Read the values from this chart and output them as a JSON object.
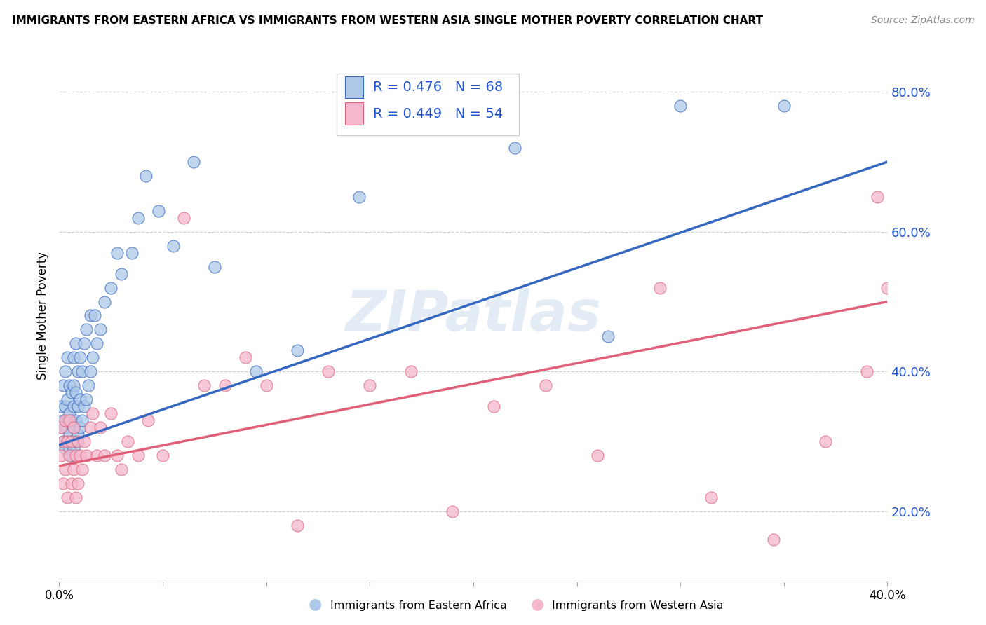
{
  "title": "IMMIGRANTS FROM EASTERN AFRICA VS IMMIGRANTS FROM WESTERN ASIA SINGLE MOTHER POVERTY CORRELATION CHART",
  "source": "Source: ZipAtlas.com",
  "ylabel": "Single Mother Poverty",
  "xlim": [
    0.0,
    0.4
  ],
  "ylim": [
    0.1,
    0.86
  ],
  "xticks": [
    0.0,
    0.05,
    0.1,
    0.15,
    0.2,
    0.25,
    0.3,
    0.35,
    0.4
  ],
  "xtick_labels": [
    "0.0%",
    "",
    "",
    "",
    "",
    "",
    "",
    "",
    "40.0%"
  ],
  "yticks": [
    0.2,
    0.4,
    0.6,
    0.8
  ],
  "ytick_labels": [
    "20.0%",
    "40.0%",
    "60.0%",
    "80.0%"
  ],
  "series1_label": "Immigrants from Eastern Africa",
  "series2_label": "Immigrants from Western Asia",
  "R1": 0.476,
  "N1": 68,
  "R2": 0.449,
  "N2": 54,
  "color1": "#adc8e8",
  "color2": "#f5b8cc",
  "line_color1": "#3567c0",
  "line_color2": "#e0607a",
  "legend_text_color": "#2255cc",
  "background_color": "#ffffff",
  "grid_color": "#cccccc",
  "series1_x": [
    0.001,
    0.001,
    0.002,
    0.002,
    0.002,
    0.003,
    0.003,
    0.003,
    0.003,
    0.004,
    0.004,
    0.004,
    0.004,
    0.005,
    0.005,
    0.005,
    0.005,
    0.006,
    0.006,
    0.006,
    0.006,
    0.007,
    0.007,
    0.007,
    0.007,
    0.007,
    0.008,
    0.008,
    0.008,
    0.008,
    0.009,
    0.009,
    0.009,
    0.01,
    0.01,
    0.01,
    0.011,
    0.011,
    0.012,
    0.012,
    0.013,
    0.013,
    0.014,
    0.015,
    0.015,
    0.016,
    0.017,
    0.018,
    0.02,
    0.022,
    0.025,
    0.028,
    0.03,
    0.035,
    0.038,
    0.042,
    0.048,
    0.055,
    0.065,
    0.075,
    0.095,
    0.115,
    0.145,
    0.175,
    0.22,
    0.265,
    0.3,
    0.35
  ],
  "series1_y": [
    0.32,
    0.35,
    0.3,
    0.33,
    0.38,
    0.29,
    0.32,
    0.35,
    0.4,
    0.3,
    0.33,
    0.36,
    0.42,
    0.29,
    0.31,
    0.34,
    0.38,
    0.28,
    0.3,
    0.33,
    0.37,
    0.29,
    0.32,
    0.35,
    0.38,
    0.42,
    0.3,
    0.33,
    0.37,
    0.44,
    0.31,
    0.35,
    0.4,
    0.32,
    0.36,
    0.42,
    0.33,
    0.4,
    0.35,
    0.44,
    0.36,
    0.46,
    0.38,
    0.4,
    0.48,
    0.42,
    0.48,
    0.44,
    0.46,
    0.5,
    0.52,
    0.57,
    0.54,
    0.57,
    0.62,
    0.68,
    0.63,
    0.58,
    0.7,
    0.55,
    0.4,
    0.43,
    0.65,
    0.77,
    0.72,
    0.45,
    0.78,
    0.78
  ],
  "series2_x": [
    0.001,
    0.001,
    0.002,
    0.002,
    0.003,
    0.003,
    0.004,
    0.004,
    0.005,
    0.005,
    0.006,
    0.006,
    0.007,
    0.007,
    0.008,
    0.008,
    0.009,
    0.009,
    0.01,
    0.011,
    0.012,
    0.013,
    0.015,
    0.016,
    0.018,
    0.02,
    0.022,
    0.025,
    0.028,
    0.03,
    0.033,
    0.038,
    0.043,
    0.05,
    0.06,
    0.07,
    0.08,
    0.09,
    0.1,
    0.115,
    0.13,
    0.15,
    0.17,
    0.19,
    0.21,
    0.235,
    0.26,
    0.29,
    0.315,
    0.345,
    0.37,
    0.39,
    0.395,
    0.4
  ],
  "series2_y": [
    0.28,
    0.32,
    0.24,
    0.3,
    0.26,
    0.33,
    0.22,
    0.3,
    0.28,
    0.33,
    0.24,
    0.3,
    0.26,
    0.32,
    0.22,
    0.28,
    0.24,
    0.3,
    0.28,
    0.26,
    0.3,
    0.28,
    0.32,
    0.34,
    0.28,
    0.32,
    0.28,
    0.34,
    0.28,
    0.26,
    0.3,
    0.28,
    0.33,
    0.28,
    0.62,
    0.38,
    0.38,
    0.42,
    0.38,
    0.18,
    0.4,
    0.38,
    0.4,
    0.2,
    0.35,
    0.38,
    0.28,
    0.52,
    0.22,
    0.16,
    0.3,
    0.4,
    0.65,
    0.52
  ],
  "line1_x0": 0.0,
  "line1_y0": 0.295,
  "line1_x1": 0.4,
  "line1_y1": 0.7,
  "line2_x0": 0.0,
  "line2_y0": 0.265,
  "line2_x1": 0.4,
  "line2_y1": 0.5
}
